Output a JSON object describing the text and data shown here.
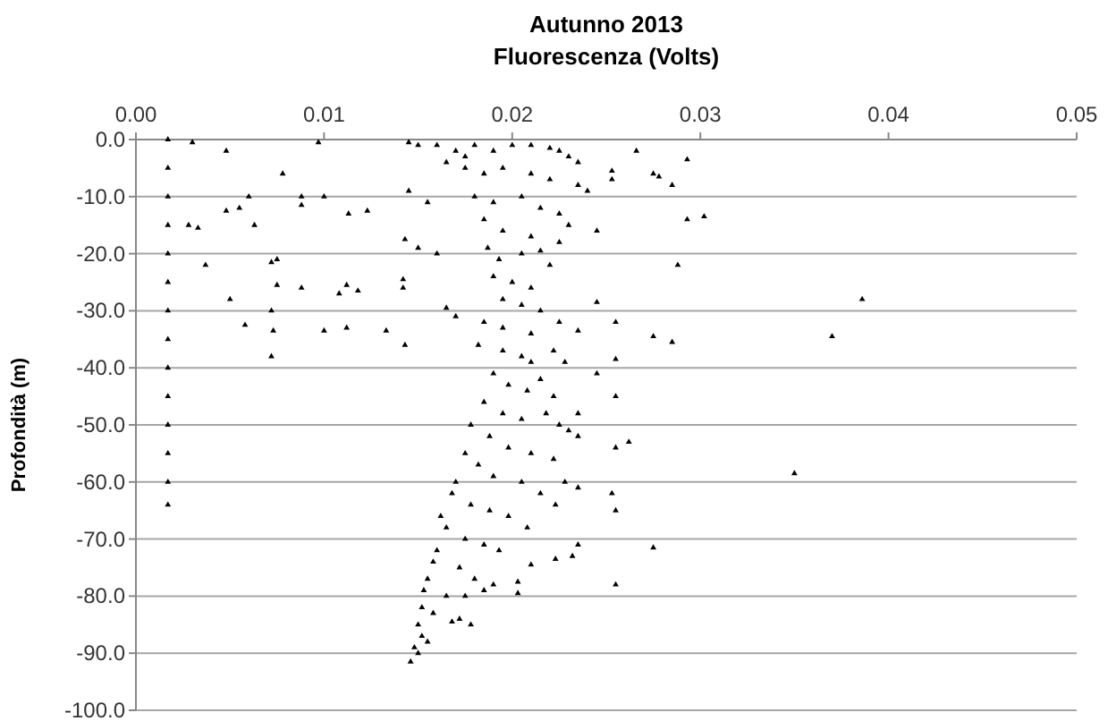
{
  "chart_data": {
    "type": "scatter",
    "title": "Autunno 2013",
    "xlabel": "Fluorescenza (Volts)",
    "ylabel": "Profondità (m)",
    "xlim": [
      0,
      0.05
    ],
    "xticks": [
      {
        "value": 0,
        "label": "0.00"
      },
      {
        "value": 0.01,
        "label": "0.01"
      },
      {
        "value": 0.02,
        "label": "0.02"
      },
      {
        "value": 0.03,
        "label": "0.03"
      },
      {
        "value": 0.04,
        "label": "0.04"
      },
      {
        "value": 0.05,
        "label": "0.05"
      }
    ],
    "ylim": [
      -100,
      0
    ],
    "yticks": [
      {
        "value": 0,
        "label": "0.0"
      },
      {
        "value": -10,
        "label": "-10.0"
      },
      {
        "value": -20,
        "label": "-20.0"
      },
      {
        "value": -30,
        "label": "-30.0"
      },
      {
        "value": -40,
        "label": "-40.0"
      },
      {
        "value": -50,
        "label": "-50.0"
      },
      {
        "value": -60,
        "label": "-60.0"
      },
      {
        "value": -70,
        "label": "-70.0"
      },
      {
        "value": -80,
        "label": "-80.0"
      },
      {
        "value": -90,
        "label": "-90.0"
      },
      {
        "value": -100,
        "label": "-100.0"
      }
    ],
    "grid": "y",
    "marker": "triangle",
    "series": [
      {
        "color": "#000000",
        "x": [
          0.0017,
          0.0017,
          0.0017,
          0.0017,
          0.0017,
          0.0017,
          0.0017,
          0.0017,
          0.0017,
          0.0017,
          0.0017,
          0.0017,
          0.0017,
          0.0017,
          0.003,
          0.0048,
          0.0078,
          0.0097,
          0.0048,
          0.0055,
          0.006,
          0.0088,
          0.01,
          0.0088,
          0.0113,
          0.0123,
          0.0028,
          0.0033,
          0.0063,
          0.0037,
          0.0072,
          0.0075,
          0.0075,
          0.0088,
          0.0108,
          0.0112,
          0.0118,
          0.005,
          0.0072,
          0.0058,
          0.0073,
          0.01,
          0.0112,
          0.0133,
          0.0143,
          0.0072,
          0.0266,
          0.0293,
          0.0275,
          0.0278,
          0.0285,
          0.0293,
          0.0302,
          0.0288,
          0.0386,
          0.037,
          0.0275,
          0.0285,
          0.0255,
          0.0245,
          0.0253,
          0.0253,
          0.0245,
          0.0255,
          0.0255,
          0.0245,
          0.0262,
          0.0255,
          0.0235,
          0.023,
          0.0235,
          0.0235,
          0.0228,
          0.0253,
          0.0255,
          0.0235,
          0.0232,
          0.0275,
          0.0255,
          0.0223,
          0.021,
          0.0203,
          0.0203,
          0.035,
          0.0145,
          0.015,
          0.016,
          0.017,
          0.0175,
          0.018,
          0.019,
          0.02,
          0.021,
          0.022,
          0.0225,
          0.023,
          0.0235,
          0.0165,
          0.0175,
          0.0185,
          0.0195,
          0.021,
          0.022,
          0.0235,
          0.024,
          0.0145,
          0.0155,
          0.018,
          0.019,
          0.0205,
          0.0215,
          0.0225,
          0.023,
          0.0185,
          0.0195,
          0.021,
          0.0225,
          0.0187,
          0.0193,
          0.0205,
          0.0215,
          0.022,
          0.0143,
          0.015,
          0.016,
          0.0142,
          0.0142,
          0.019,
          0.02,
          0.021,
          0.0195,
          0.0205,
          0.0215,
          0.0165,
          0.017,
          0.0185,
          0.0195,
          0.021,
          0.0225,
          0.0235,
          0.0182,
          0.0195,
          0.0205,
          0.021,
          0.0222,
          0.0228,
          0.019,
          0.0198,
          0.0208,
          0.0215,
          0.0222,
          0.0185,
          0.0195,
          0.0205,
          0.0218,
          0.0225,
          0.0178,
          0.0188,
          0.0198,
          0.021,
          0.0222,
          0.0175,
          0.0182,
          0.019,
          0.0205,
          0.0215,
          0.0223,
          0.017,
          0.0168,
          0.0178,
          0.0188,
          0.0198,
          0.0208,
          0.0162,
          0.0165,
          0.0175,
          0.0185,
          0.0193,
          0.016,
          0.0158,
          0.0172,
          0.018,
          0.019,
          0.0155,
          0.0153,
          0.0165,
          0.0175,
          0.0185,
          0.0152,
          0.0158,
          0.0172,
          0.0178,
          0.0168,
          0.015,
          0.0152,
          0.0155,
          0.0148,
          0.015,
          0.0146
        ],
        "values": [
          0,
          -5,
          -10,
          -15,
          -20,
          -25,
          -30,
          -35,
          -40,
          -45,
          -50,
          -55,
          -60,
          -64,
          -0.5,
          -2,
          -6,
          -0.5,
          -12.5,
          -12,
          -10,
          -10,
          -10,
          -11.5,
          -13,
          -12.5,
          -15,
          -15.5,
          -15,
          -22,
          -21.5,
          -21,
          -25.5,
          -26,
          -27,
          -25.5,
          -26.5,
          -28,
          -30,
          -32.5,
          -33.5,
          -33.5,
          -33,
          -33.5,
          -36,
          -38,
          -2,
          -3.5,
          -6,
          -6.5,
          -8,
          -14,
          -13.5,
          -22,
          -28,
          -34.5,
          -34.5,
          -35.5,
          -32,
          -28.5,
          -7,
          -5.5,
          -16,
          -38.5,
          -45,
          -41,
          -53,
          -54,
          -48,
          -51,
          -52,
          -61,
          -60,
          -62,
          -65,
          -71,
          -73,
          -71.5,
          -78,
          -73.5,
          -74.5,
          -77.5,
          -79.5,
          -58.5,
          -0.5,
          -1,
          -1,
          -2,
          -3,
          -1,
          -2,
          -1,
          -1,
          -1.5,
          -2,
          -3,
          -4,
          -4,
          -5,
          -6,
          -5,
          -6,
          -7,
          -8,
          -9,
          -9,
          -11,
          -10,
          -11,
          -10,
          -12,
          -13,
          -15,
          -14,
          -16,
          -17,
          -18,
          -19,
          -21,
          -20,
          -19.5,
          -22,
          -17.5,
          -19,
          -20,
          -24.5,
          -26,
          -24,
          -25,
          -26,
          -28,
          -29,
          -30,
          -29.5,
          -31,
          -32,
          -33,
          -34,
          -32,
          -33.5,
          -36,
          -37,
          -38,
          -39,
          -37,
          -39,
          -41,
          -43,
          -44,
          -42,
          -45,
          -46,
          -48,
          -49,
          -48,
          -50,
          -50,
          -52,
          -54,
          -55,
          -56,
          -55,
          -57,
          -59,
          -60,
          -62,
          -64,
          -60,
          -62,
          -64,
          -65,
          -66,
          -68,
          -66,
          -68,
          -70,
          -71,
          -72,
          -72,
          -74,
          -75,
          -77,
          -78,
          -77,
          -79,
          -80,
          -80,
          -79,
          -82,
          -83,
          -84,
          -85,
          -84.5,
          -85,
          -87,
          -88,
          -89,
          -90,
          -91.5
        ]
      }
    ]
  }
}
